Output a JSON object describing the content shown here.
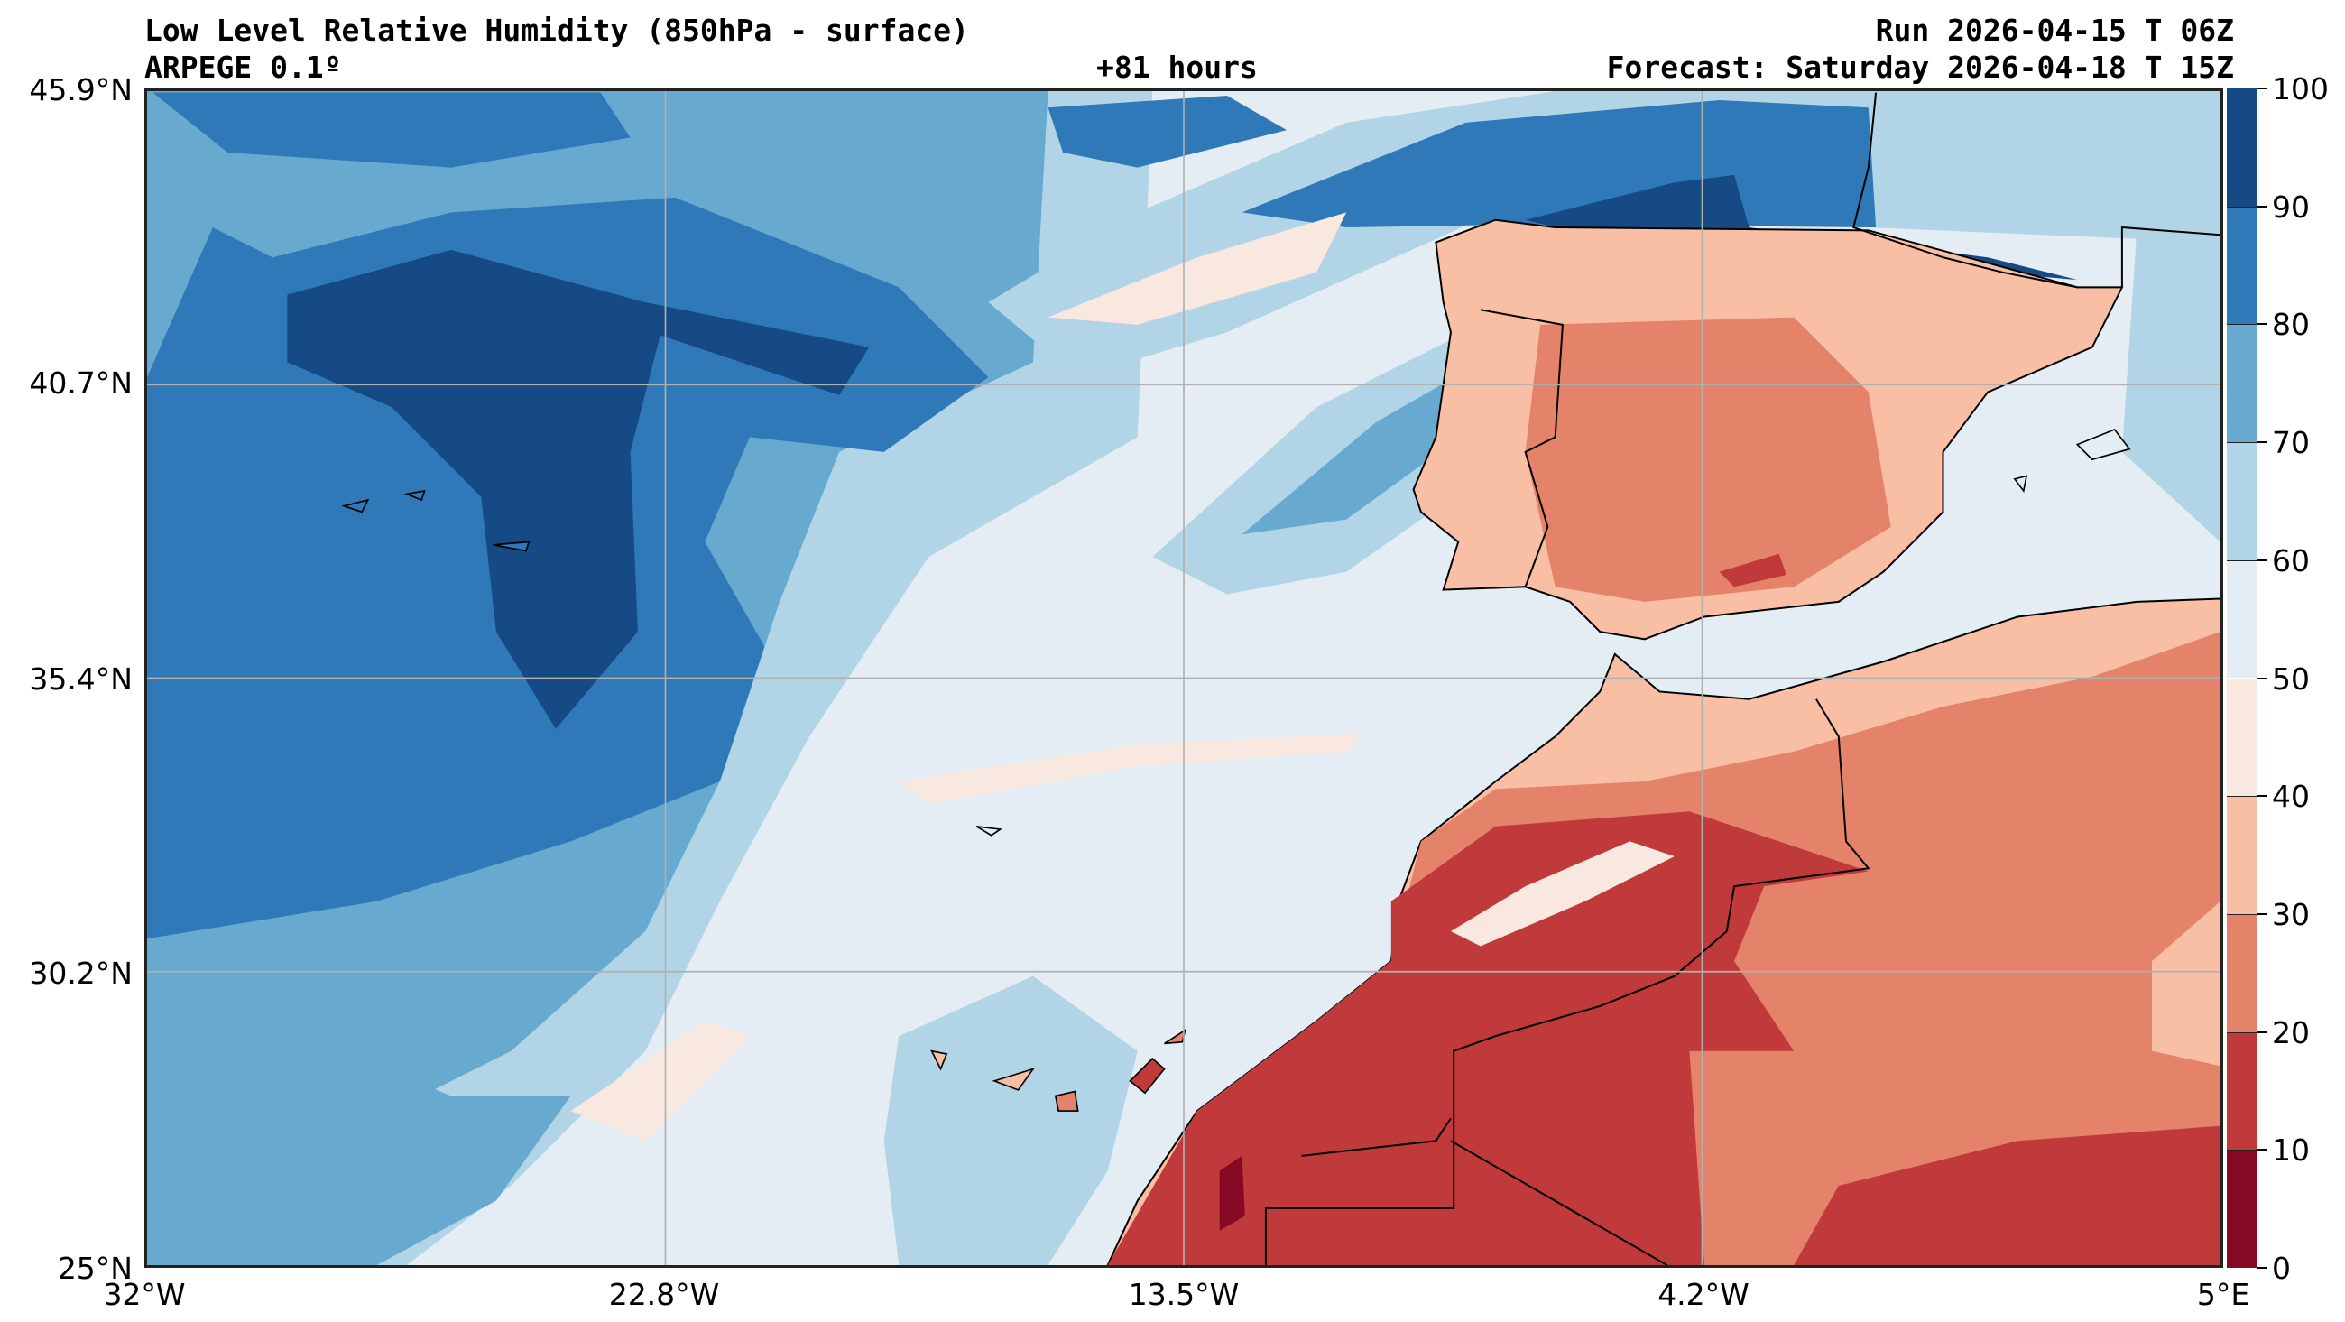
{
  "header": {
    "title": "Low Level Relative Humidity (850hPa - surface)",
    "model": "ARPEGE 0.1º",
    "lead_time": "+81 hours",
    "run": "Run 2026-04-15 T 06Z",
    "forecast": "Forecast: Saturday 2026-04-18 T 15Z"
  },
  "axes": {
    "lat_labels": [
      "45.9°N",
      "40.7°N",
      "35.4°N",
      "30.2°N",
      "25°N"
    ],
    "lon_labels": [
      "32°W",
      "22.8°W",
      "13.5°W",
      "4.2°W",
      "5°E"
    ]
  },
  "colorbar": {
    "levels": [
      "0",
      "10",
      "20",
      "30",
      "40",
      "50",
      "60",
      "70",
      "80",
      "90",
      "100"
    ],
    "colors": [
      "#870a24",
      "#c0393b",
      "#e4826a",
      "#f8bfa5",
      "#f9e8df",
      "#e5edf4",
      "#b2d4e7",
      "#67a9cf",
      "#3079b8",
      "#154a85"
    ]
  }
}
